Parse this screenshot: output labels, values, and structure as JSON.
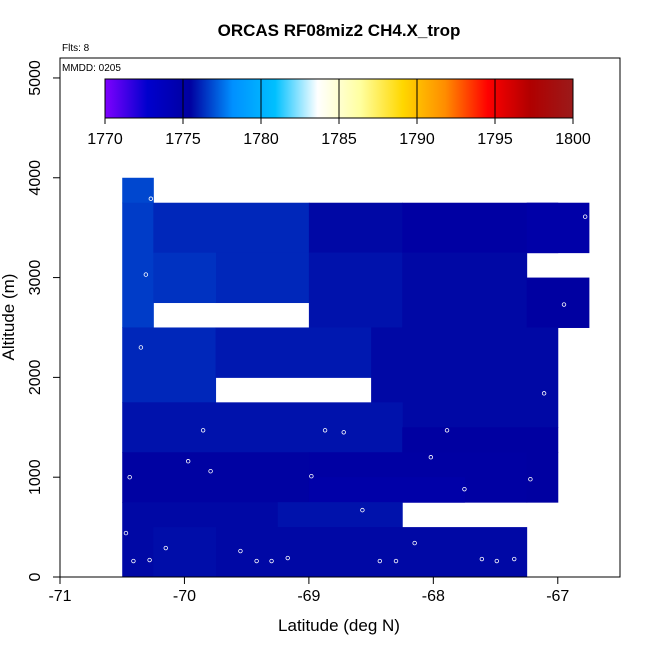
{
  "chart_data": {
    "type": "heatmap",
    "title": "ORCAS RF08miz2 CH4.X_trop",
    "xlabel": "Latitude (deg N)",
    "ylabel": "Altitude (m)",
    "xlim": [
      -71,
      -66.5
    ],
    "ylim": [
      0,
      5200
    ],
    "x_ticks": [
      "-71",
      "-70",
      "-69",
      "-68",
      "-67"
    ],
    "y_ticks": [
      "0",
      "1000",
      "2000",
      "3000",
      "4000",
      "5000"
    ],
    "flights_note": "Flts: 8",
    "date_note": "MMDD: 0205",
    "colorbar": {
      "min": 1770,
      "max": 1800,
      "tick_labels": [
        "1770",
        "1775",
        "1780",
        "1785",
        "1790",
        "1795",
        "1800"
      ],
      "color_stops": [
        "#7f00ff",
        "#0000cd",
        "#0000a0",
        "#0090ff",
        "#00c0ff",
        "#ffffff",
        "#ffffa0",
        "#ffd700",
        "#ff8c00",
        "#ff0000",
        "#b00000",
        "#9b1a1a"
      ]
    },
    "cells": [
      {
        "x0": -70.5,
        "x1": -70.25,
        "y0": 3750,
        "y1": 4000,
        "value": 1776.8
      },
      {
        "x0": -70.5,
        "x1": -70.25,
        "y0": 2500,
        "y1": 3750,
        "value": 1776.6
      },
      {
        "x0": -70.25,
        "x1": -69.0,
        "y0": 3250,
        "y1": 3750,
        "value": 1776.2
      },
      {
        "x0": -69.75,
        "x1": -69.0,
        "y0": 2750,
        "y1": 3250,
        "value": 1776.2
      },
      {
        "x0": -70.25,
        "x1": -69.75,
        "y0": 2750,
        "y1": 3250,
        "value": 1776.4
      },
      {
        "x0": -69.0,
        "x1": -68.25,
        "y0": 3250,
        "y1": 3750,
        "value": 1775.6
      },
      {
        "x0": -69.0,
        "x1": -68.25,
        "y0": 2500,
        "y1": 3250,
        "value": 1775.8
      },
      {
        "x0": -68.25,
        "x1": -67.0,
        "y0": 3250,
        "y1": 3750,
        "value": 1775.3
      },
      {
        "x0": -67.25,
        "x1": -66.75,
        "y0": 3250,
        "y1": 3750,
        "value": 1775.0
      },
      {
        "x0": -68.25,
        "x1": -67.25,
        "y0": 2500,
        "y1": 3250,
        "value": 1775.6
      },
      {
        "x0": -67.25,
        "x1": -66.75,
        "y0": 2500,
        "y1": 3000,
        "value": 1775.4
      },
      {
        "x0": -70.5,
        "x1": -69.75,
        "y0": 1750,
        "y1": 2500,
        "value": 1776.2
      },
      {
        "x0": -69.75,
        "x1": -68.5,
        "y0": 2000,
        "y1": 2500,
        "value": 1775.9
      },
      {
        "x0": -68.5,
        "x1": -67.0,
        "y0": 1500,
        "y1": 2500,
        "value": 1775.6
      },
      {
        "x0": -70.5,
        "x1": -68.25,
        "y0": 1250,
        "y1": 1750,
        "value": 1775.8
      },
      {
        "x0": -68.25,
        "x1": -67.0,
        "y0": 1250,
        "y1": 1500,
        "value": 1775.4
      },
      {
        "x0": -70.5,
        "x1": -69.0,
        "y0": 750,
        "y1": 1250,
        "value": 1775.5
      },
      {
        "x0": -69.0,
        "x1": -67.25,
        "y0": 750,
        "y1": 1250,
        "value": 1775.3
      },
      {
        "x0": -69.0,
        "x1": -67.75,
        "y0": 750,
        "y1": 1000,
        "value": 1775.0
      },
      {
        "x0": -67.25,
        "x1": -67.0,
        "y0": 750,
        "y1": 1250,
        "value": 1775.4
      },
      {
        "x0": -70.5,
        "x1": -69.25,
        "y0": 0,
        "y1": 750,
        "value": 1775.6
      },
      {
        "x0": -69.25,
        "x1": -68.25,
        "y0": 500,
        "y1": 750,
        "value": 1775.8
      },
      {
        "x0": -69.25,
        "x1": -67.25,
        "y0": 0,
        "y1": 500,
        "value": 1775.6
      },
      {
        "x0": -70.25,
        "x1": -69.75,
        "y0": 0,
        "y1": 500,
        "value": 1775.7
      }
    ],
    "flight_points": [
      {
        "x": -70.27,
        "y": 3790
      },
      {
        "x": -70.31,
        "y": 3030
      },
      {
        "x": -70.35,
        "y": 2300
      },
      {
        "x": -70.47,
        "y": 440
      },
      {
        "x": -70.44,
        "y": 1000
      },
      {
        "x": -70.41,
        "y": 160
      },
      {
        "x": -70.28,
        "y": 170
      },
      {
        "x": -70.15,
        "y": 290
      },
      {
        "x": -69.97,
        "y": 1160
      },
      {
        "x": -69.85,
        "y": 1470
      },
      {
        "x": -69.79,
        "y": 1060
      },
      {
        "x": -69.55,
        "y": 260
      },
      {
        "x": -69.42,
        "y": 160
      },
      {
        "x": -69.3,
        "y": 160
      },
      {
        "x": -69.17,
        "y": 190
      },
      {
        "x": -68.98,
        "y": 1010
      },
      {
        "x": -68.87,
        "y": 1470
      },
      {
        "x": -68.72,
        "y": 1450
      },
      {
        "x": -68.57,
        "y": 670
      },
      {
        "x": -68.43,
        "y": 160
      },
      {
        "x": -68.3,
        "y": 160
      },
      {
        "x": -68.15,
        "y": 340
      },
      {
        "x": -68.02,
        "y": 1200
      },
      {
        "x": -67.89,
        "y": 1470
      },
      {
        "x": -67.75,
        "y": 880
      },
      {
        "x": -67.61,
        "y": 180
      },
      {
        "x": -67.49,
        "y": 160
      },
      {
        "x": -67.35,
        "y": 180
      },
      {
        "x": -67.22,
        "y": 980
      },
      {
        "x": -67.11,
        "y": 1840
      },
      {
        "x": -66.95,
        "y": 2730
      },
      {
        "x": -66.78,
        "y": 3610
      }
    ]
  }
}
